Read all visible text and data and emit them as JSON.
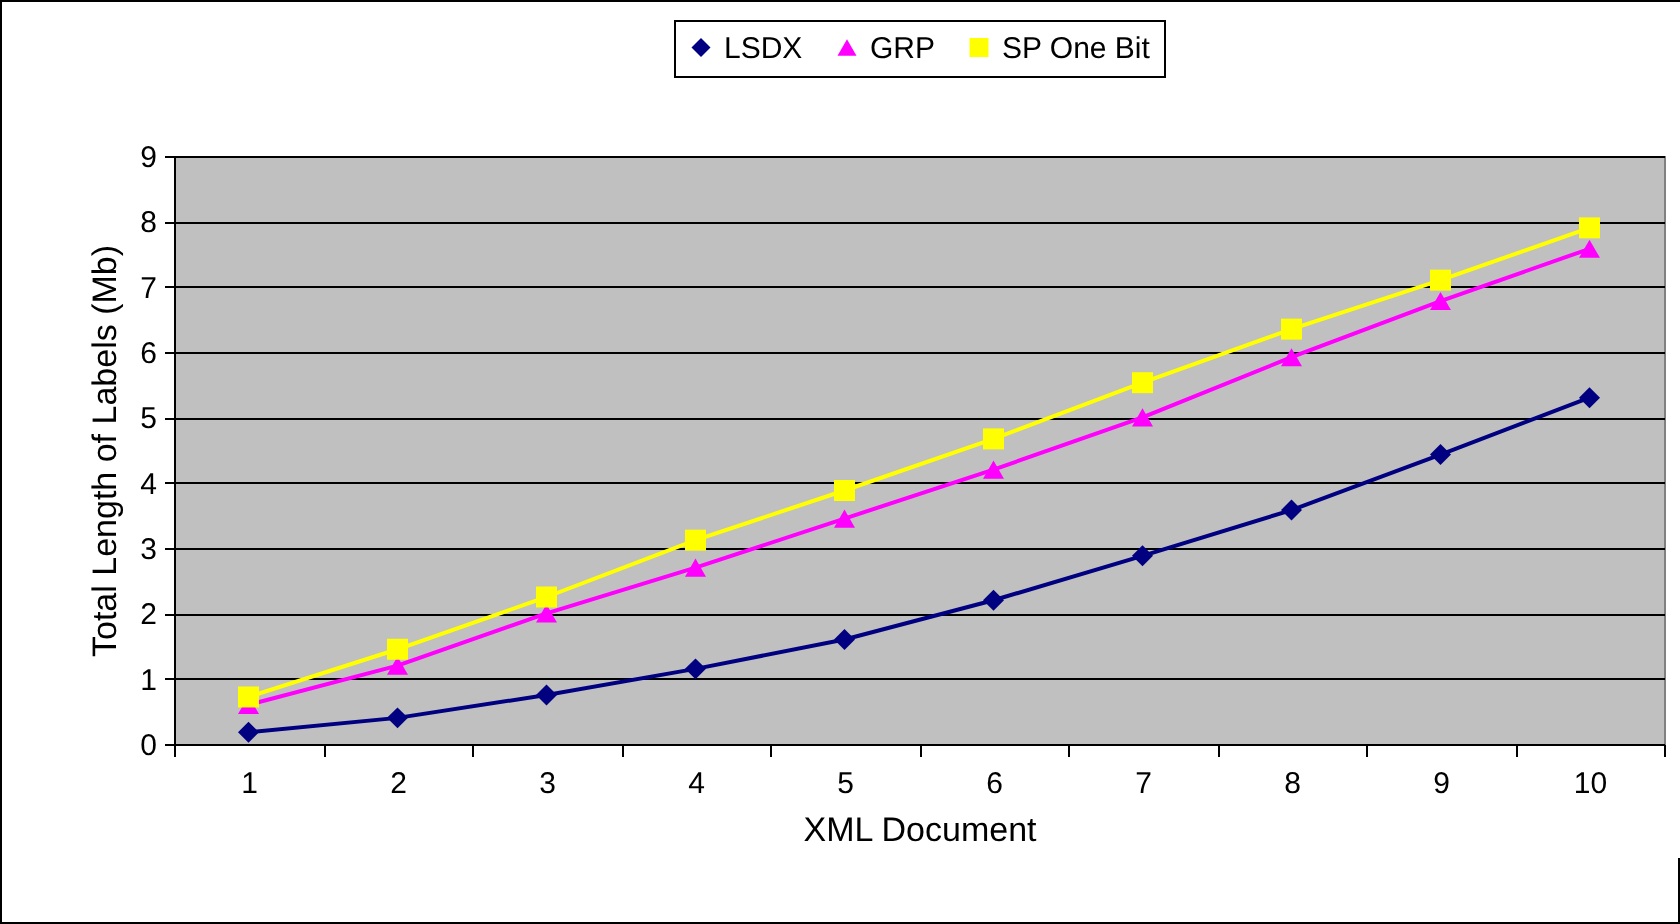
{
  "chart_data": {
    "type": "line",
    "xlabel": "XML Document",
    "ylabel": "Total Length of Labels (Mb)",
    "categories": [
      "1",
      "2",
      "3",
      "4",
      "5",
      "6",
      "7",
      "8",
      "9",
      "10"
    ],
    "series": [
      {
        "name": "LSDX",
        "color": "#000080",
        "marker": "diamond",
        "values": [
          0.18,
          0.4,
          0.75,
          1.15,
          1.6,
          2.2,
          2.88,
          3.58,
          4.43,
          5.3
        ]
      },
      {
        "name": "GRP",
        "color": "#ff00ff",
        "marker": "triangle",
        "values": [
          0.6,
          1.2,
          2.0,
          2.7,
          3.45,
          4.2,
          5.0,
          5.92,
          6.78,
          7.58
        ]
      },
      {
        "name": "SP One Bit",
        "color": "#ffff00",
        "marker": "square",
        "values": [
          0.72,
          1.45,
          2.25,
          3.12,
          3.88,
          4.67,
          5.53,
          6.35,
          7.1,
          7.9
        ]
      }
    ],
    "ylim": [
      0,
      9
    ],
    "yticks": [
      0,
      1,
      2,
      3,
      4,
      5,
      6,
      7,
      8,
      9
    ],
    "grid": "y",
    "legend": "top",
    "line_style": "solid"
  }
}
